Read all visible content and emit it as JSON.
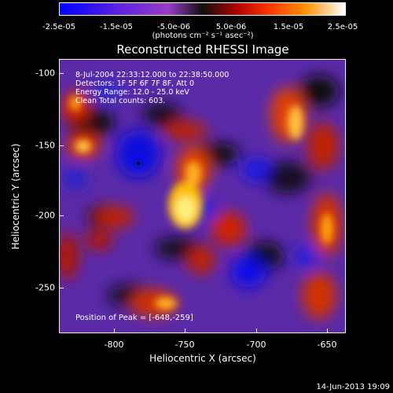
{
  "colorbar": {
    "ticks": [
      "-2.5e-05",
      "-1.5e-05",
      "-5.0e-06",
      "5.0e-06",
      "1.5e-05",
      "2.5e-05"
    ],
    "unit_label": "(photons cm⁻² s⁻¹ asec⁻²)"
  },
  "title": "Reconstructed RHESSI Image",
  "info": {
    "line1": "8-Jul-2004 22:33:12.000 to 22:38:50.000",
    "line2": "Detectors: 1F 5F 6F 7F 8F, Att 0",
    "line3": "Energy Range: 12.0 - 25.0 keV",
    "line4": "Clean    Total counts: 603."
  },
  "peak_label": "Position of Peak = [-648,-259]",
  "axes": {
    "xlabel": "Heliocentric X (arcsec)",
    "ylabel": "Heliocentric Y (arcsec)",
    "xticks": [
      "-800",
      "-750",
      "-700",
      "-650"
    ],
    "yticks": [
      "-100",
      "-150",
      "-200",
      "-250"
    ]
  },
  "footer_date": "14-Jun-2013 19:09"
}
